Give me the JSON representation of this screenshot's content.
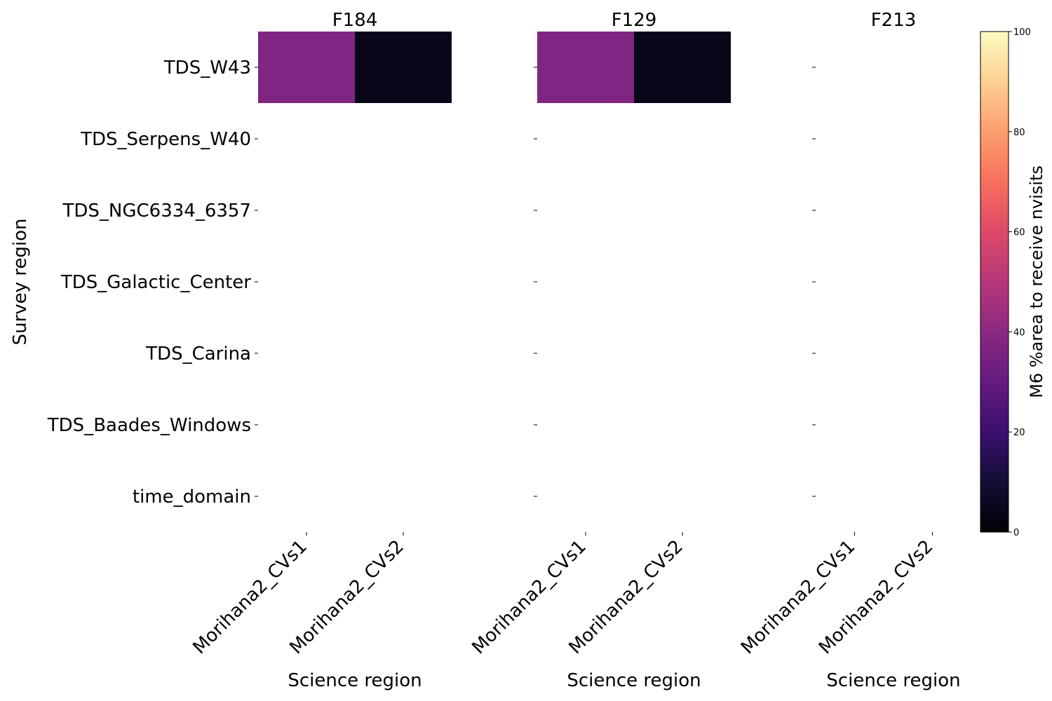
{
  "chart_data": {
    "type": "heatmap",
    "colormap": "magma",
    "ylabel": "Survey region",
    "rows": [
      "TDS_W43",
      "TDS_Serpens_W40",
      "TDS_NGC6334_6357",
      "TDS_Galactic_Center",
      "TDS_Carina",
      "TDS_Baades_Windows",
      "time_domain"
    ],
    "panels": [
      {
        "title": "F184",
        "xlabel": "Science region",
        "columns": [
          "Morihana2_CVs1",
          "Morihana2_CVs2"
        ],
        "values": [
          [
            37,
            4
          ],
          [
            null,
            null
          ],
          [
            null,
            null
          ],
          [
            null,
            null
          ],
          [
            null,
            null
          ],
          [
            null,
            null
          ],
          [
            null,
            null
          ]
        ]
      },
      {
        "title": "F129",
        "xlabel": "Science region",
        "columns": [
          "Morihana2_CVs1",
          "Morihana2_CVs2"
        ],
        "values": [
          [
            37,
            4
          ],
          [
            null,
            null
          ],
          [
            null,
            null
          ],
          [
            null,
            null
          ],
          [
            null,
            null
          ],
          [
            null,
            null
          ],
          [
            null,
            null
          ]
        ]
      },
      {
        "title": "F213",
        "xlabel": "Science region",
        "columns": [
          "Morihana2_CVs1",
          "Morihana2_CVs2"
        ],
        "values": [
          [
            null,
            null
          ],
          [
            null,
            null
          ],
          [
            null,
            null
          ],
          [
            null,
            null
          ],
          [
            null,
            null
          ],
          [
            null,
            null
          ],
          [
            null,
            null
          ]
        ]
      }
    ],
    "colorbar": {
      "label": "M6 %area to receive nvisits",
      "range": [
        0,
        100
      ],
      "ticks": [
        "0",
        "20",
        "40",
        "60",
        "80",
        "100"
      ]
    }
  }
}
